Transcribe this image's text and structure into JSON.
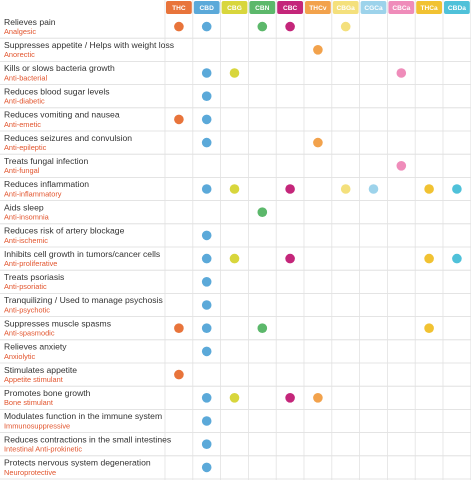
{
  "table": {
    "columns": [
      {
        "label": "THC",
        "color": "#e8743b"
      },
      {
        "label": "CBD",
        "color": "#5ba9d9"
      },
      {
        "label": "CBG",
        "color": "#d8d63c"
      },
      {
        "label": "CBN",
        "color": "#5cb86b"
      },
      {
        "label": "CBC",
        "color": "#c4267a"
      },
      {
        "label": "THCv",
        "color": "#f2a24c"
      },
      {
        "label": "CBGa",
        "color": "#f4e07c"
      },
      {
        "label": "CGCa",
        "color": "#9dd3eb"
      },
      {
        "label": "CBCa",
        "color": "#ef8cba"
      },
      {
        "label": "THCa",
        "color": "#f1c232"
      },
      {
        "label": "CBDa",
        "color": "#4fc1d9"
      }
    ],
    "rows": [
      {
        "effect": "Relieves pain",
        "term": "Analgesic",
        "dots": [
          0,
          1,
          3,
          4,
          6
        ]
      },
      {
        "effect": "Suppresses appetite / Helps with weight loss",
        "term": "Anorectic",
        "dots": [
          5
        ]
      },
      {
        "effect": "Kills or slows bacteria growth",
        "term": "Anti-bacterial",
        "dots": [
          1,
          2,
          8
        ]
      },
      {
        "effect": "Reduces blood sugar levels",
        "term": "Anti-diabetic",
        "dots": [
          1
        ]
      },
      {
        "effect": "Reduces vomiting and nausea",
        "term": "Anti-emetic",
        "dots": [
          0,
          1
        ]
      },
      {
        "effect": "Reduces seizures and convulsion",
        "term": "Anti-epileptic",
        "dots": [
          1,
          5
        ]
      },
      {
        "effect": "Treats fungal infection",
        "term": "Anti-fungal",
        "dots": [
          8
        ]
      },
      {
        "effect": "Reduces inflammation",
        "term": "Anti-inflammatory",
        "dots": [
          1,
          2,
          4,
          6,
          7,
          9,
          10
        ]
      },
      {
        "effect": "Aids sleep",
        "term": "Anti-insomnia",
        "dots": [
          3
        ]
      },
      {
        "effect": "Reduces risk of artery blockage",
        "term": "Anti-ischemic",
        "dots": [
          1
        ]
      },
      {
        "effect": "Inhibits cell growth in tumors/cancer cells",
        "term": "Anti-proliferative",
        "dots": [
          1,
          2,
          4,
          9,
          10
        ]
      },
      {
        "effect": "Treats psoriasis",
        "term": "Anti-psoriatic",
        "dots": [
          1
        ]
      },
      {
        "effect": "Tranquilizing / Used to manage psychosis",
        "term": "Anti-psychotic",
        "dots": [
          1
        ]
      },
      {
        "effect": "Suppresses muscle spasms",
        "term": "Anti-spasmodic",
        "dots": [
          0,
          1,
          3,
          9
        ]
      },
      {
        "effect": "Relieves anxiety",
        "term": "Anxiolytic",
        "dots": [
          1
        ]
      },
      {
        "effect": "Stimulates appetite",
        "term": "Appetite stimulant",
        "dots": [
          0
        ]
      },
      {
        "effect": "Promotes bone growth",
        "term": "Bone stimulant",
        "dots": [
          1,
          2,
          4,
          5
        ]
      },
      {
        "effect": "Modulates function in the immune system",
        "term": "Immunosuppressive",
        "dots": [
          1
        ]
      },
      {
        "effect": "Reduces contractions in the small intestines",
        "term": "Intestinal Anti-prokinetic",
        "dots": [
          1
        ]
      },
      {
        "effect": "Protects nervous system degeneration",
        "term": "Neuroprotective",
        "dots": [
          1
        ]
      }
    ]
  }
}
